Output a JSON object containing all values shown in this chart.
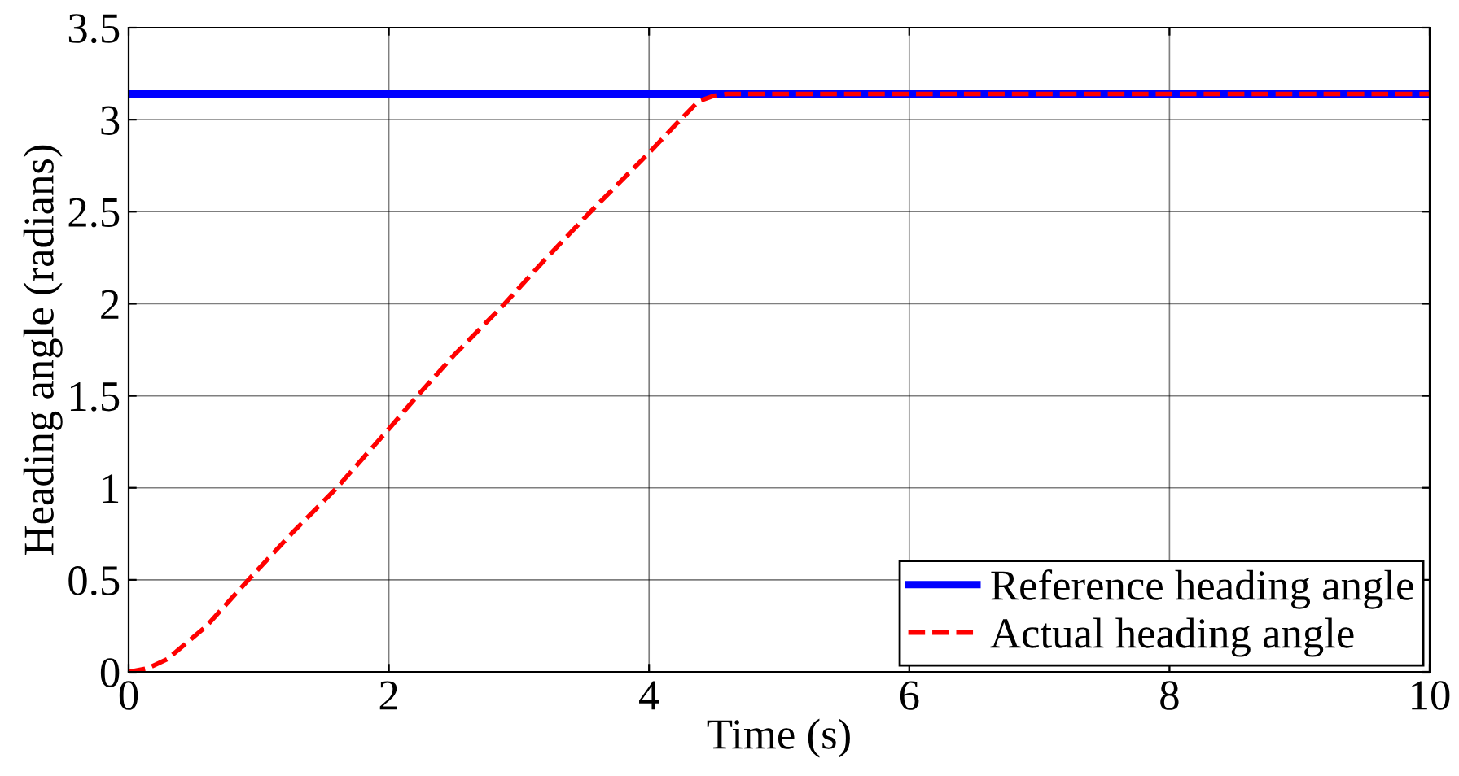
{
  "chart_data": {
    "type": "line",
    "xlabel": "Time (s)",
    "ylabel": "Heading angle (radians)",
    "xlim": [
      0,
      10
    ],
    "ylim": [
      0,
      3.5
    ],
    "xticks": [
      0,
      2,
      4,
      6,
      8,
      10
    ],
    "yticks": [
      0,
      0.5,
      1,
      1.5,
      2,
      2.5,
      3,
      3.5
    ],
    "grid": true,
    "legend": "bottom right",
    "series": [
      {
        "name": "Reference heading angle",
        "color": "#0000ff",
        "line_style": "solid",
        "x": [
          0,
          10
        ],
        "values": [
          3.14,
          3.14
        ]
      },
      {
        "name": "Actual heading angle",
        "color": "#ff0000",
        "line_style": "dashed",
        "x": [
          0,
          0.15,
          0.3,
          0.6,
          0.92,
          1.25,
          1.6,
          2.0,
          2.22,
          2.5,
          2.89,
          3.2,
          3.55,
          4.0,
          4.2,
          4.38,
          4.5,
          4.6,
          5,
          10
        ],
        "values": [
          0,
          0.02,
          0.07,
          0.25,
          0.5,
          0.75,
          1.0,
          1.32,
          1.5,
          1.72,
          2.0,
          2.24,
          2.5,
          2.82,
          2.97,
          3.1,
          3.13,
          3.14,
          3.14,
          3.14
        ]
      }
    ]
  }
}
